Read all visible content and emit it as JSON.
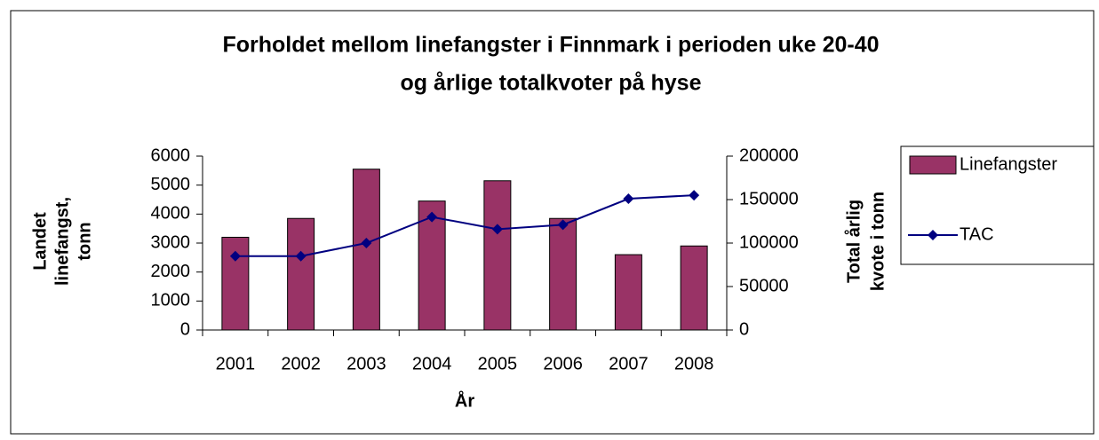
{
  "chart_data": {
    "type": "bar_line",
    "title": [
      "Forholdet mellom linefangster i Finnmark i perioden uke 20-40",
      "og årlige totalkvoter på hyse"
    ],
    "x_label": "År",
    "y_label": [
      "Landet",
      "linefangst,",
      "tonn"
    ],
    "y2_label": [
      "Total årlig",
      "kvote i tonn"
    ],
    "categories": [
      "2001",
      "2002",
      "2003",
      "2004",
      "2005",
      "2006",
      "2007",
      "2008"
    ],
    "series": [
      {
        "name": "Linefangster",
        "type": "bar",
        "color": "#993366",
        "values": [
          3200,
          3850,
          5550,
          4450,
          5150,
          3850,
          2600,
          2900
        ]
      },
      {
        "name": "TAC",
        "type": "line",
        "axis": "y2",
        "color": "#000080",
        "values": [
          85000,
          85000,
          100000,
          130000,
          116000,
          121000,
          151000,
          155000
        ]
      }
    ],
    "ylim": [
      0,
      6000
    ],
    "yticks": [
      0,
      1000,
      2000,
      3000,
      4000,
      5000,
      6000
    ],
    "y2lim": [
      0,
      200000
    ],
    "y2ticks": [
      0,
      50000,
      100000,
      150000,
      200000
    ],
    "grid": false,
    "legend": "right"
  }
}
